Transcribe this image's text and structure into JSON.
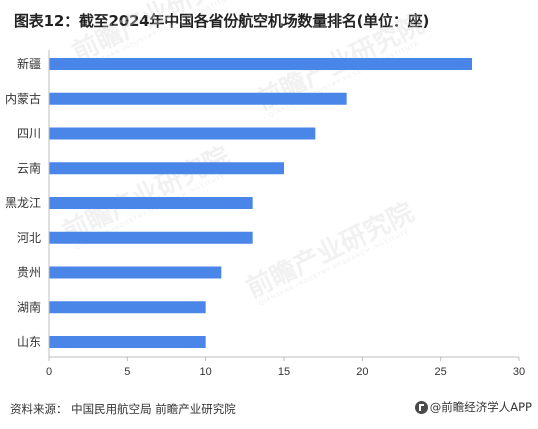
{
  "title": "图表12：截至2024年中国各省份航空机场数量排名(单位：座)",
  "footer": {
    "source": "资料来源：  中国民用航空局 前瞻产业研究院",
    "brand": "@前瞻经济学人APP"
  },
  "watermarks": [
    {
      "main": "前瞻产业研究院",
      "sub": "QIANZHAN INDUSTRY RESEARCH INSTITUTE"
    }
  ],
  "colors": {
    "bar": "#4a86e8",
    "axis": "#bfbfbf",
    "text": "#333333"
  },
  "chart_data": {
    "type": "bar",
    "orientation": "horizontal",
    "categories": [
      "新疆",
      "内蒙古",
      "四川",
      "云南",
      "黑龙江",
      "河北",
      "贵州",
      "湖南",
      "山东"
    ],
    "values": [
      27,
      19,
      17,
      15,
      13,
      13,
      11,
      10,
      10
    ],
    "xlim": [
      0,
      30
    ],
    "xticks": [
      0,
      5,
      10,
      15,
      20,
      25,
      30
    ],
    "grid": false,
    "legend": "none"
  }
}
